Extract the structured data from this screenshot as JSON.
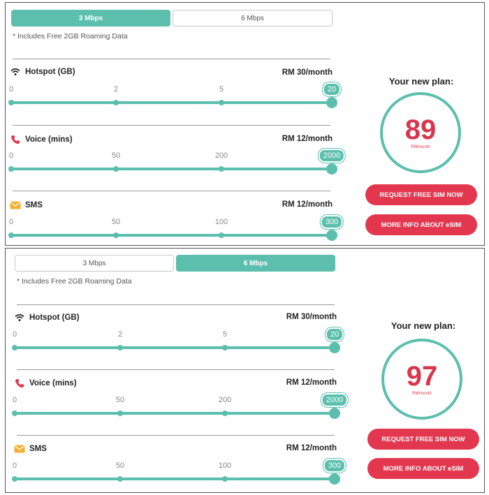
{
  "colors": {
    "accent": "#5cbfad",
    "cta": "#e3374f",
    "price_text": "#d9364e"
  },
  "panels": [
    {
      "tabs": [
        {
          "label": "3 Mbps",
          "active": true
        },
        {
          "label": "6 Mbps",
          "active": false
        }
      ],
      "note": "* Includes Free 2GB Roaming Data",
      "rows": [
        {
          "icon": "wifi-icon",
          "label": "Hotspot (GB)",
          "price": "RM 30/month",
          "ticks": [
            "0",
            "2",
            "5"
          ],
          "value": "20"
        },
        {
          "icon": "phone-icon",
          "label": "Voice (mins)",
          "price": "RM 12/month",
          "ticks": [
            "0",
            "50",
            "200"
          ],
          "value": "2000"
        },
        {
          "icon": "envelope-icon",
          "label": "SMS",
          "price": "RM 12/month",
          "ticks": [
            "0",
            "50",
            "100"
          ],
          "value": "300"
        }
      ],
      "plan": {
        "title": "Your new plan:",
        "amount": "89",
        "unit": "RM/month"
      },
      "buttons": {
        "request": "REQUEST FREE SIM NOW",
        "info": "MORE INFO ABOUT eSIM"
      }
    },
    {
      "tabs": [
        {
          "label": "3 Mbps",
          "active": false
        },
        {
          "label": "6 Mbps",
          "active": true
        }
      ],
      "note": "* Includes Free 2GB Roaming Data",
      "rows": [
        {
          "icon": "wifi-icon",
          "label": "Hotspot (GB)",
          "price": "RM 30/month",
          "ticks": [
            "0",
            "2",
            "5"
          ],
          "value": "20"
        },
        {
          "icon": "phone-icon",
          "label": "Voice (mins)",
          "price": "RM 12/month",
          "ticks": [
            "0",
            "50",
            "200"
          ],
          "value": "2000"
        },
        {
          "icon": "envelope-icon",
          "label": "SMS",
          "price": "RM 12/month",
          "ticks": [
            "0",
            "50",
            "100"
          ],
          "value": "300"
        }
      ],
      "plan": {
        "title": "Your new plan:",
        "amount": "97",
        "unit": "RM/month"
      },
      "buttons": {
        "request": "REQUEST FREE SIM NOW",
        "info": "MORE INFO ABOUT eSIM"
      }
    }
  ]
}
